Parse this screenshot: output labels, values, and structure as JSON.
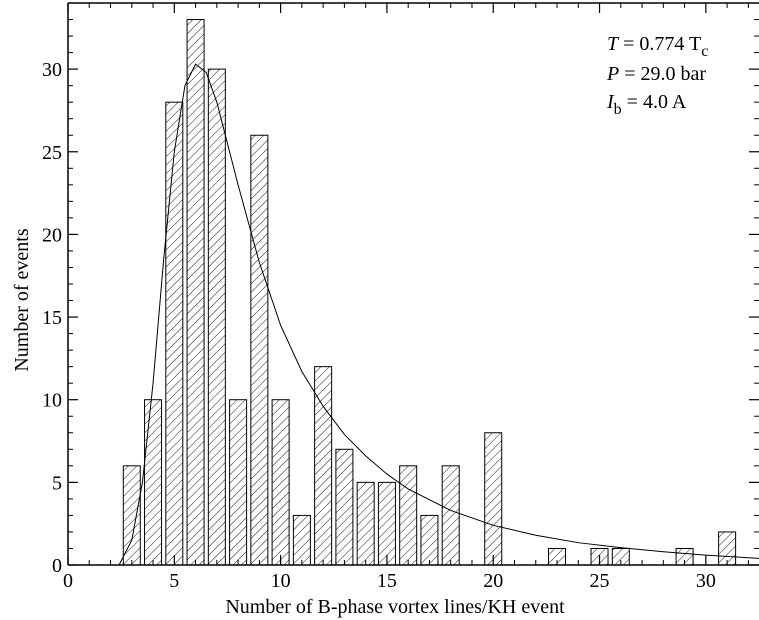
{
  "chart_data": {
    "type": "bar",
    "xlabel": "Number of B-phase vortex lines/KH event",
    "ylabel": "Number of events",
    "xlim": [
      0,
      32.5
    ],
    "ylim": [
      0,
      34
    ],
    "x_ticks": [
      "0",
      "5",
      "10",
      "15",
      "20",
      "25",
      "30"
    ],
    "y_ticks": [
      "0",
      "5",
      "10",
      "15",
      "20",
      "25",
      "30"
    ],
    "grid": false,
    "bar_fill": "diagonal-hatch",
    "bars": [
      {
        "x": 3,
        "value": 6
      },
      {
        "x": 4,
        "value": 10
      },
      {
        "x": 5,
        "value": 28
      },
      {
        "x": 6,
        "value": 33
      },
      {
        "x": 7,
        "value": 30
      },
      {
        "x": 8,
        "value": 10
      },
      {
        "x": 9,
        "value": 26
      },
      {
        "x": 10,
        "value": 10
      },
      {
        "x": 11,
        "value": 3
      },
      {
        "x": 12,
        "value": 12
      },
      {
        "x": 13,
        "value": 7
      },
      {
        "x": 14,
        "value": 5
      },
      {
        "x": 15,
        "value": 5
      },
      {
        "x": 16,
        "value": 6
      },
      {
        "x": 17,
        "value": 3
      },
      {
        "x": 18,
        "value": 6
      },
      {
        "x": 20,
        "value": 8
      },
      {
        "x": 23,
        "value": 1
      },
      {
        "x": 25,
        "value": 1
      },
      {
        "x": 26,
        "value": 1
      },
      {
        "x": 29,
        "value": 1
      },
      {
        "x": 31,
        "value": 2
      }
    ],
    "fit_curve": {
      "x": [
        2.4,
        3,
        3.5,
        4,
        4.5,
        5,
        5.5,
        6,
        6.5,
        7,
        7.5,
        8,
        9,
        10,
        11,
        12,
        13,
        14,
        15,
        16,
        18,
        20,
        22,
        24,
        26,
        28,
        30,
        32.5
      ],
      "y": [
        0,
        1.5,
        5,
        11,
        18.5,
        25,
        29,
        30.3,
        29.8,
        28,
        25.5,
        23,
        18.3,
        14.5,
        11.7,
        9.6,
        7.9,
        6.6,
        5.5,
        4.6,
        3.3,
        2.4,
        1.8,
        1.35,
        1.05,
        0.8,
        0.6,
        0.4
      ]
    },
    "annotations": [
      {
        "symbol": "T",
        "rest": " = 0.774 T",
        "sub": "c"
      },
      {
        "symbol": "P",
        "rest": " = 29.0 bar",
        "sub": ""
      },
      {
        "symbol": "I",
        "sub": "b",
        "rest": " = 4.0 A"
      }
    ]
  }
}
